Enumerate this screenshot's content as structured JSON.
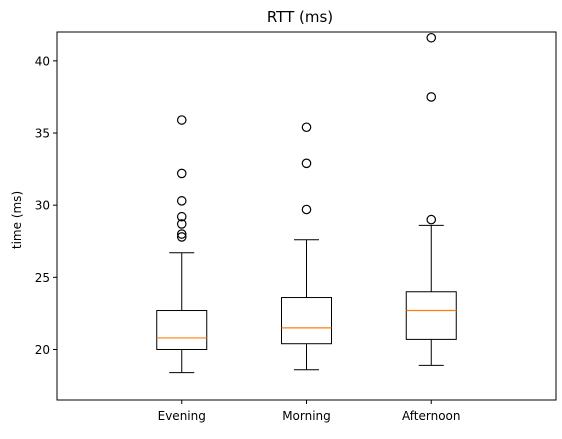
{
  "chart_data": {
    "type": "box",
    "title": "RTT (ms)",
    "xlabel": "",
    "ylabel": "time (ms)",
    "ylim": [
      16.5,
      42.0
    ],
    "yticks": [
      20,
      25,
      30,
      35,
      40
    ],
    "categories": [
      "Evening",
      "Morning",
      "Afternoon"
    ],
    "boxes": [
      {
        "category": "Evening",
        "whisker_low": 18.4,
        "q1": 20.0,
        "median": 20.8,
        "q3": 22.7,
        "whisker_high": 26.7,
        "outliers": [
          27.8,
          28.0,
          28.7,
          29.2,
          30.3,
          32.2,
          35.9
        ]
      },
      {
        "category": "Morning",
        "whisker_low": 18.6,
        "q1": 20.4,
        "median": 21.5,
        "q3": 23.6,
        "whisker_high": 27.6,
        "outliers": [
          29.7,
          32.9,
          35.4
        ]
      },
      {
        "category": "Afternoon",
        "whisker_low": 18.9,
        "q1": 20.7,
        "median": 22.7,
        "q3": 24.0,
        "whisker_high": 28.6,
        "outliers": [
          29.0,
          37.5,
          41.6
        ]
      }
    ],
    "colors": {
      "box": "#000000",
      "median": "#ff7f0e",
      "outlier": "#000000"
    },
    "grid": false
  }
}
